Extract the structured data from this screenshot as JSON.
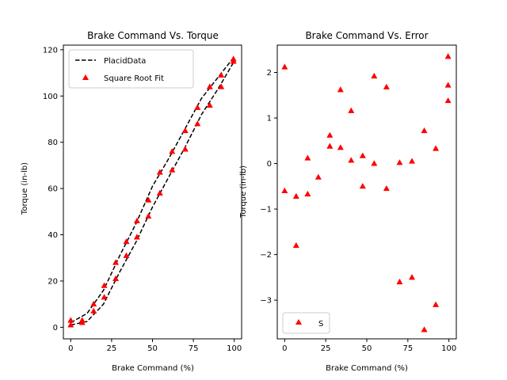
{
  "chart_data": [
    {
      "type": "line",
      "title": "Brake Command Vs. Torque",
      "xlabel": "Brake Command (%)",
      "ylabel": "Torque (in-lb)",
      "xlim": [
        -4.5,
        104.5
      ],
      "ylim": [
        -5,
        122
      ],
      "xticks": [
        0,
        25,
        50,
        75,
        100
      ],
      "yticks": [
        0,
        20,
        40,
        60,
        80,
        100,
        120
      ],
      "grid": false,
      "legend_position": "top-left",
      "series": [
        {
          "name": "PlacidData",
          "style": "dashed-line",
          "color": "#000000",
          "x": [
            0,
            6.9,
            13.8,
            20.7,
            27.6,
            34.5,
            41.4,
            48.3,
            55.2,
            62.1,
            69.0,
            75.9,
            82.8,
            89.7,
            96.6,
            100
          ],
          "x_upper": [
            0,
            10,
            20,
            30,
            40,
            50,
            60,
            70,
            80,
            90,
            100
          ],
          "y_upper": [
            2,
            6,
            16,
            31,
            45,
            61,
            73,
            86,
            99,
            108,
            117
          ],
          "x_lower": [
            0,
            10,
            20,
            30,
            40,
            50,
            60,
            70,
            80,
            90,
            100
          ],
          "y_lower": [
            1,
            2.5,
            10,
            24,
            37,
            52,
            65,
            78,
            92,
            103,
            115
          ]
        },
        {
          "name": "Square Root Fit",
          "style": "marker-triangle",
          "color": "#ff0000",
          "x": [
            0,
            0,
            7,
            7,
            14,
            14,
            20.5,
            20.5,
            27.5,
            27.5,
            34,
            34,
            40.5,
            40.5,
            47.5,
            47.5,
            54.5,
            54.5,
            62,
            62,
            70,
            70,
            77.5,
            77.5,
            85,
            85,
            92,
            92,
            99.5,
            99.5
          ],
          "y": [
            1,
            3,
            2,
            3,
            7,
            10,
            13,
            18,
            21,
            28,
            31,
            37,
            39,
            46,
            48,
            55,
            58,
            67,
            68,
            76,
            77,
            85,
            88,
            95,
            96,
            104,
            104,
            109,
            115,
            116
          ]
        }
      ]
    },
    {
      "type": "scatter",
      "title": "Brake Command Vs. Error",
      "xlabel": "Brake Command (%)",
      "ylabel": "Torque (in-lb)",
      "xlim": [
        -4.5,
        104.5
      ],
      "ylim": [
        -3.85,
        2.6
      ],
      "xticks": [
        0,
        25,
        50,
        75,
        100
      ],
      "yticks": [
        -3,
        -2,
        -1,
        0,
        1,
        2
      ],
      "grid": false,
      "legend_position": "bottom-left",
      "series": [
        {
          "name": "S",
          "style": "marker-triangle",
          "color": "#ff0000",
          "x": [
            0,
            0,
            7,
            7,
            14,
            14,
            20.5,
            27.5,
            27.5,
            34,
            34,
            40.5,
            40.5,
            47.5,
            47.5,
            54.5,
            54.5,
            62,
            62,
            70,
            70,
            77.5,
            77.5,
            85,
            85,
            92,
            92,
            99.5,
            99.5,
            99.5
          ],
          "y": [
            2.12,
            -0.6,
            -0.72,
            -1.8,
            -0.67,
            0.12,
            -0.3,
            0.62,
            0.38,
            1.62,
            0.35,
            1.16,
            0.07,
            0.17,
            -0.5,
            1.92,
            0.0,
            1.68,
            -0.55,
            0.02,
            -2.6,
            0.05,
            -2.5,
            0.72,
            -3.65,
            0.33,
            -3.1,
            2.35,
            1.72,
            1.38
          ]
        }
      ]
    }
  ]
}
